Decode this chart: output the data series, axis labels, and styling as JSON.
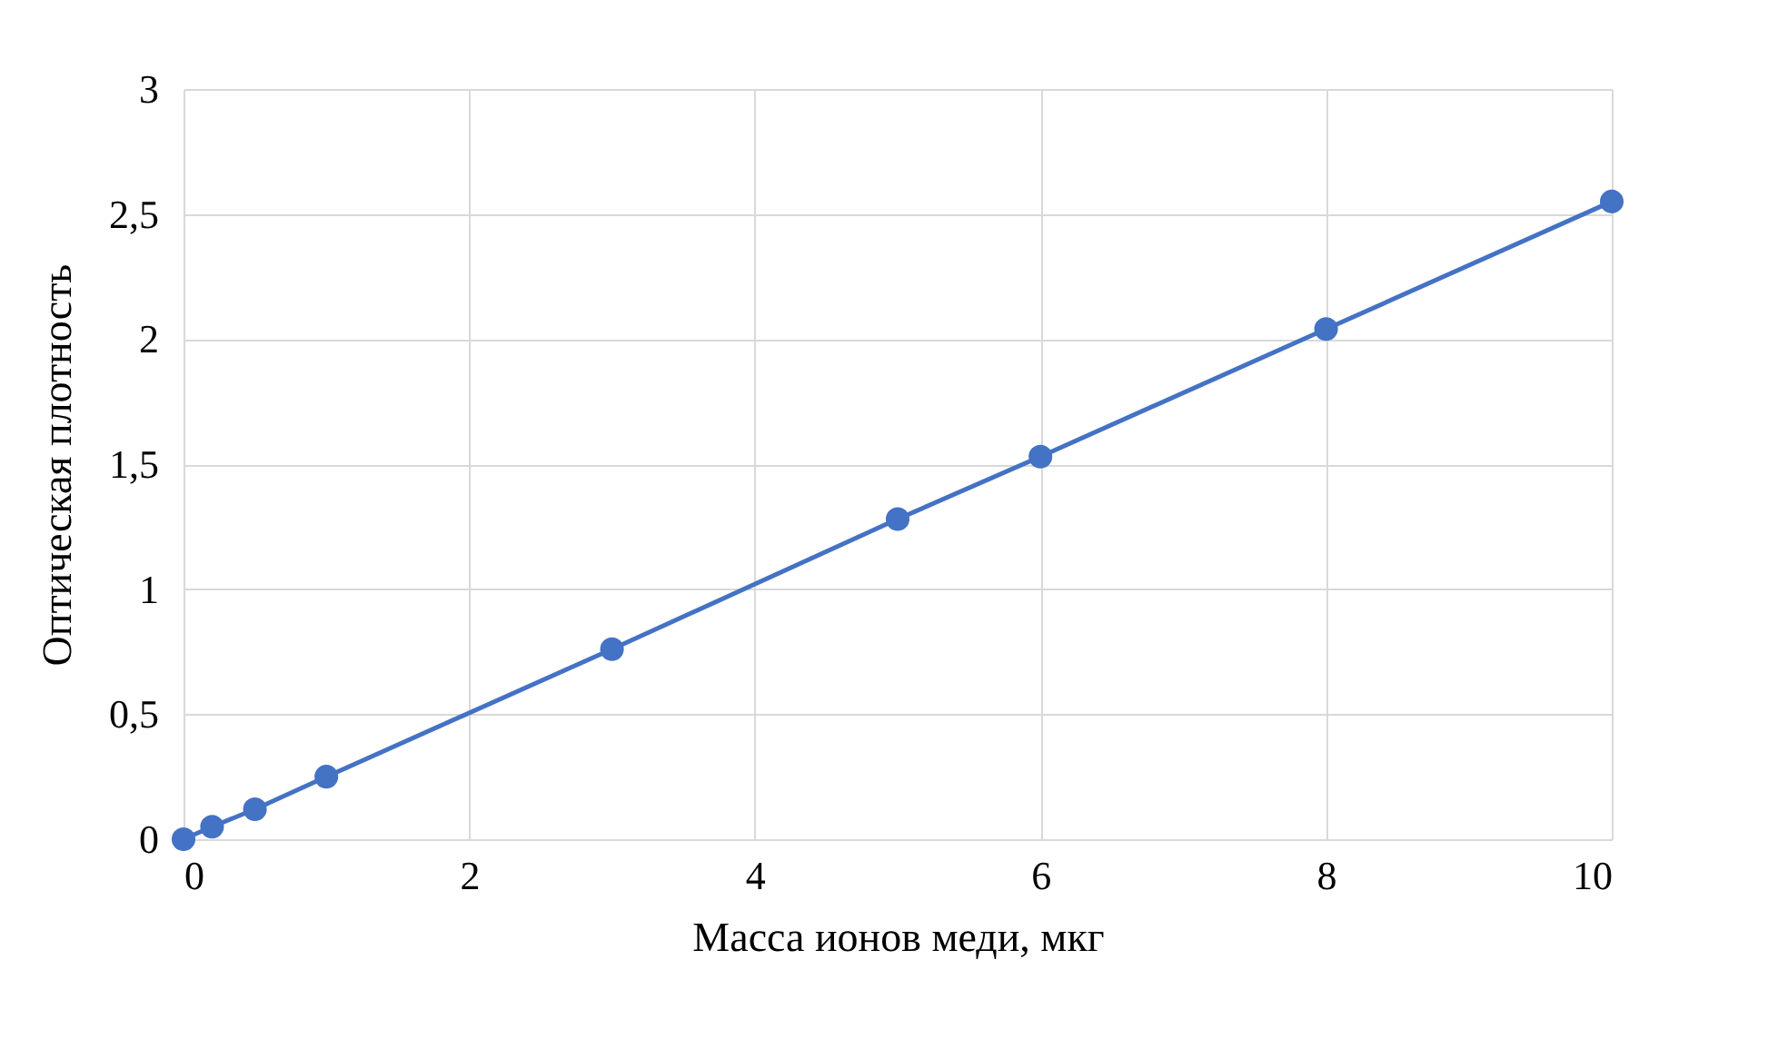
{
  "chart_data": {
    "type": "line",
    "xlabel": "Масса ионов меди, мкг",
    "ylabel": "Оптическая плотность",
    "x": [
      0,
      0.2,
      0.5,
      1,
      3,
      5,
      6,
      8,
      10
    ],
    "series": [
      {
        "color": "#4472c4",
        "values": [
          0,
          0.05,
          0.12,
          0.25,
          0.76,
          1.28,
          1.53,
          2.04,
          2.55
        ]
      }
    ],
    "xlim": [
      0,
      10
    ],
    "xticks": [
      0,
      2,
      4,
      6,
      8,
      10
    ],
    "ylim": [
      0,
      3
    ],
    "yticks": [
      0,
      {
        "value": 0.5,
        "label": "0,5"
      },
      1,
      {
        "value": 1.5,
        "label": "1,5"
      },
      2,
      {
        "value": 2.5,
        "label": "2,5"
      },
      3
    ],
    "grid": true,
    "marker": "circle",
    "line_style": "solid"
  }
}
